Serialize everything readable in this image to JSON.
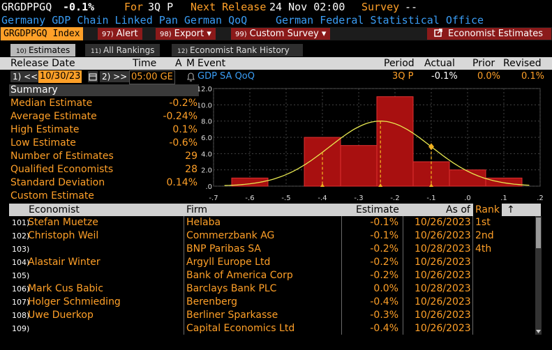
{
  "header": {
    "ticker": "GRGDPPGQ",
    "value": "-0.1%",
    "for_label": "For",
    "for_period": "3Q P",
    "next_release_label": "Next Release",
    "next_release": "24 Nov 02:00",
    "survey_label": "Survey",
    "survey_value": "--",
    "description": "Germany GDP Chain Linked Pan German QoQ",
    "source": "German Federal Statistical Office"
  },
  "menu": {
    "index_label": "GRGDPPGQ Index",
    "alert": {
      "num": "97)",
      "label": "Alert"
    },
    "export": {
      "num": "98)",
      "label": "Export ▾"
    },
    "custom_survey": {
      "num": "99)",
      "label": "Custom Survey ▾"
    },
    "economist_estimates": "Economist Estimates"
  },
  "tabs": [
    {
      "num": "10)",
      "label": "Estimates"
    },
    {
      "num": "11)",
      "label": "All Rankings"
    },
    {
      "num": "12)",
      "label": "Economist Rank History"
    }
  ],
  "release": {
    "headers": {
      "release_date": "Release Date",
      "time": "Time",
      "a": "A",
      "m": "M",
      "event": "Event",
      "period": "Period",
      "actual": "Actual",
      "prior": "Prior",
      "revised": "Revised"
    },
    "prev_btn": "1) <<",
    "date": "10/30/23",
    "next_btn": "2) >>",
    "time": "05:00",
    "tz": "GE",
    "event": "GDP SA QoQ",
    "period": "3Q P",
    "actual": "-0.1%",
    "prior": "0.0%",
    "revised": "0.1%"
  },
  "summary": {
    "title": "Summary",
    "rows": [
      {
        "label": "Median Estimate",
        "value": "-0.2%"
      },
      {
        "label": "Average Estimate",
        "value": "-0.24%"
      },
      {
        "label": "High Estimate",
        "value": "0.1%"
      },
      {
        "label": "Low Estimate",
        "value": "-0.6%"
      },
      {
        "label": "Number of Estimates",
        "value": "29"
      },
      {
        "label": "Qualified Economists",
        "value": "28"
      },
      {
        "label": "Standard Deviation",
        "value": "0.14%"
      },
      {
        "label": "Custom Estimate",
        "value": ""
      }
    ]
  },
  "chart_data": {
    "type": "bar",
    "bins": [
      {
        "x0": -0.65,
        "x1": -0.55,
        "count": 1
      },
      {
        "x0": -0.45,
        "x1": -0.35,
        "count": 6
      },
      {
        "x0": -0.35,
        "x1": -0.25,
        "count": 5
      },
      {
        "x0": -0.25,
        "x1": -0.15,
        "count": 11
      },
      {
        "x0": -0.15,
        "x1": -0.05,
        "count": 3
      },
      {
        "x0": -0.05,
        "x1": 0.05,
        "count": 2
      },
      {
        "x0": 0.05,
        "x1": 0.15,
        "count": 1
      }
    ],
    "xlim": [
      -0.7,
      0.2
    ],
    "ylim": [
      0,
      12
    ],
    "x_ticks": [
      "-.7",
      "-.6",
      "-.5",
      "-.4",
      "-.3",
      "-.2",
      "-.1",
      ".0",
      ".1",
      ".2"
    ],
    "y_ticks": [
      ".0",
      "2.0",
      "4.0",
      "6.0",
      "8.0",
      "10.0",
      "12.0"
    ],
    "normal_curve": {
      "mean": -0.24,
      "std": 0.14,
      "peak": 8
    },
    "markers": [
      {
        "x": -0.4,
        "type": "dashed-line"
      },
      {
        "x": -0.24,
        "type": "dashed-line"
      },
      {
        "x": -0.1,
        "type": "dashed-line",
        "diamond": true
      }
    ],
    "colors": {
      "bar": "#a81010",
      "bar_edge": "#e03030",
      "curve": "#e8e850",
      "marker": "#f0b020",
      "grid": "#444444"
    }
  },
  "table": {
    "headers": {
      "economist": "Economist",
      "firm": "Firm",
      "estimate": "Estimate",
      "as_of": "As of",
      "rank": "Rank",
      "sort": "↑"
    },
    "rows": [
      {
        "num": "101)",
        "economist": "Stefan Muetze",
        "firm": "Helaba",
        "estimate": "-0.1%",
        "as_of": "10/26/2023",
        "rank": "1st"
      },
      {
        "num": "102)",
        "economist": "Christoph Weil",
        "firm": "Commerzbank AG",
        "estimate": "-0.1%",
        "as_of": "10/26/2023",
        "rank": "2nd"
      },
      {
        "num": "103)",
        "economist": "",
        "firm": "BNP Paribas SA",
        "estimate": "-0.2%",
        "as_of": "10/28/2023",
        "rank": "4th"
      },
      {
        "num": "104)",
        "economist": "Alastair Winter",
        "firm": "Argyll Europe Ltd",
        "estimate": "-0.2%",
        "as_of": "10/26/2023",
        "rank": ""
      },
      {
        "num": "105)",
        "economist": "",
        "firm": "Bank of America Corp",
        "estimate": "-0.2%",
        "as_of": "10/26/2023",
        "rank": ""
      },
      {
        "num": "106)",
        "economist": "Mark Cus Babic",
        "firm": "Barclays Bank PLC",
        "estimate": "0.0%",
        "as_of": "10/28/2023",
        "rank": ""
      },
      {
        "num": "107)",
        "economist": "Holger Schmieding",
        "firm": "Berenberg",
        "estimate": "-0.4%",
        "as_of": "10/26/2023",
        "rank": ""
      },
      {
        "num": "108)",
        "economist": "Uwe Duerkop",
        "firm": "Berliner Sparkasse",
        "estimate": "-0.3%",
        "as_of": "10/26/2023",
        "rank": ""
      },
      {
        "num": "109)",
        "economist": "",
        "firm": "Capital Economics Ltd",
        "estimate": "-0.4%",
        "as_of": "10/26/2023",
        "rank": ""
      }
    ]
  }
}
